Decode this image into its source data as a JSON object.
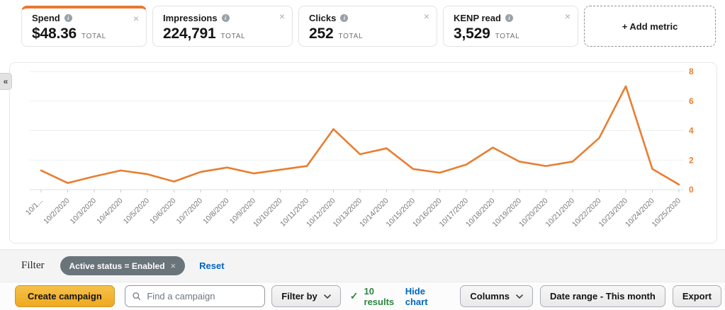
{
  "metrics": {
    "cards": [
      {
        "label": "Spend",
        "value": "$48.36",
        "unit": "TOTAL",
        "selected": true
      },
      {
        "label": "Impressions",
        "value": "224,791",
        "unit": "TOTAL",
        "selected": false
      },
      {
        "label": "Clicks",
        "value": "252",
        "unit": "TOTAL",
        "selected": false
      },
      {
        "label": "KENP read",
        "value": "3,529",
        "unit": "TOTAL",
        "selected": false
      }
    ],
    "add_metric_label": "+ Add metric"
  },
  "chart_data": {
    "type": "line",
    "title": "",
    "series_name": "Spend",
    "categories": [
      "10/1...",
      "10/2/2020",
      "10/3/2020",
      "10/4/2020",
      "10/5/2020",
      "10/6/2020",
      "10/7/2020",
      "10/8/2020",
      "10/9/2020",
      "10/10/2020",
      "10/11/2020",
      "10/12/2020",
      "10/13/2020",
      "10/14/2020",
      "10/15/2020",
      "10/16/2020",
      "10/17/2020",
      "10/18/2020",
      "10/19/2020",
      "10/20/2020",
      "10/21/2020",
      "10/22/2020",
      "10/23/2020",
      "10/24/2020",
      "10/25/2020"
    ],
    "values": [
      1.3,
      0.45,
      0.9,
      1.3,
      1.05,
      0.55,
      1.2,
      1.5,
      1.1,
      1.35,
      1.6,
      4.1,
      2.4,
      2.8,
      1.4,
      1.15,
      1.7,
      2.85,
      1.9,
      1.6,
      1.9,
      3.5,
      7.0,
      1.4,
      0.35
    ],
    "ylim": [
      0,
      8
    ],
    "yticks": [
      0,
      2,
      4,
      6,
      8
    ],
    "ytick_side": "right",
    "grid": true,
    "legend": "none",
    "line_color": "#E87E31"
  },
  "filter_bar": {
    "label": "Filter",
    "pill": "Active status = Enabled",
    "reset": "Reset"
  },
  "toolbar": {
    "create_campaign": "Create campaign",
    "search_placeholder": "Find a campaign",
    "search_value": "",
    "filter_by": "Filter by",
    "results": "10 results",
    "hide_chart": "Hide chart",
    "columns": "Columns",
    "date_range": "Date range - This month",
    "export": "Export"
  },
  "icons": {
    "close": "×",
    "info": "i",
    "check": "✓",
    "collapse": "«"
  },
  "colors": {
    "accent_orange": "#E8772E",
    "chart_line": "#E87E31",
    "link_blue": "#0066C0",
    "results_green": "#2E8540",
    "pill_gray": "#6A747B",
    "button_yellow": "#EFA91F"
  }
}
